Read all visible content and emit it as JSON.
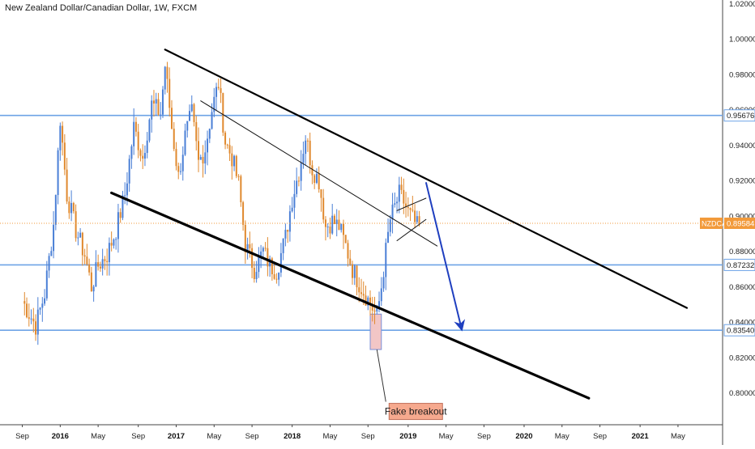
{
  "chart_data": {
    "type": "candlestick",
    "title": "New Zealand Dollar/Canadian Dollar, 1W, FXCM",
    "y_ticks": [
      "1.02000",
      "1.00000",
      "0.98000",
      "0.96000",
      "0.94000",
      "0.92000",
      "0.90000",
      "0.88000",
      "0.86000",
      "0.84000",
      "0.82000",
      "0.80000"
    ],
    "ylim": [
      0.782,
      1.022
    ],
    "x_ticks": [
      {
        "label": "Sep",
        "t": 0,
        "bold": false
      },
      {
        "label": "2016",
        "t": 17,
        "bold": true
      },
      {
        "label": "May",
        "t": 34,
        "bold": false
      },
      {
        "label": "Sep",
        "t": 52,
        "bold": false
      },
      {
        "label": "2017",
        "t": 69,
        "bold": true
      },
      {
        "label": "May",
        "t": 86,
        "bold": false
      },
      {
        "label": "Sep",
        "t": 103,
        "bold": false
      },
      {
        "label": "2018",
        "t": 121,
        "bold": true
      },
      {
        "label": "May",
        "t": 138,
        "bold": false
      },
      {
        "label": "Sep",
        "t": 155,
        "bold": false
      },
      {
        "label": "2019",
        "t": 173,
        "bold": true
      },
      {
        "label": "May",
        "t": 190,
        "bold": false
      },
      {
        "label": "Sep",
        "t": 207,
        "bold": false
      },
      {
        "label": "2020",
        "t": 225,
        "bold": true
      },
      {
        "label": "May",
        "t": 242,
        "bold": false
      },
      {
        "label": "Sep",
        "t": 259,
        "bold": false
      },
      {
        "label": "2021",
        "t": 277,
        "bold": true
      },
      {
        "label": "May",
        "t": 294,
        "bold": false
      }
    ],
    "xlim": [
      -10,
      314
    ],
    "anchors": [
      [
        0,
        0.852
      ],
      [
        6,
        0.838
      ],
      [
        10,
        0.856
      ],
      [
        14,
        0.895
      ],
      [
        17,
        0.955
      ],
      [
        20,
        0.912
      ],
      [
        24,
        0.892
      ],
      [
        28,
        0.878
      ],
      [
        31,
        0.86
      ],
      [
        34,
        0.872
      ],
      [
        38,
        0.878
      ],
      [
        42,
        0.892
      ],
      [
        46,
        0.912
      ],
      [
        50,
        0.95
      ],
      [
        54,
        0.933
      ],
      [
        58,
        0.963
      ],
      [
        62,
        0.958
      ],
      [
        64,
        0.985
      ],
      [
        67,
        0.95
      ],
      [
        70,
        0.922
      ],
      [
        73,
        0.945
      ],
      [
        76,
        0.958
      ],
      [
        79,
        0.93
      ],
      [
        82,
        0.938
      ],
      [
        85,
        0.96
      ],
      [
        88,
        0.975
      ],
      [
        91,
        0.942
      ],
      [
        94,
        0.933
      ],
      [
        97,
        0.918
      ],
      [
        100,
        0.884
      ],
      [
        104,
        0.87
      ],
      [
        108,
        0.88
      ],
      [
        111,
        0.872
      ],
      [
        114,
        0.869
      ],
      [
        118,
        0.888
      ],
      [
        121,
        0.91
      ],
      [
        124,
        0.925
      ],
      [
        127,
        0.945
      ],
      [
        130,
        0.927
      ],
      [
        133,
        0.92
      ],
      [
        136,
        0.894
      ],
      [
        139,
        0.897
      ],
      [
        142,
        0.894
      ],
      [
        145,
        0.883
      ],
      [
        148,
        0.87
      ],
      [
        151,
        0.862
      ],
      [
        154,
        0.855
      ],
      [
        157,
        0.848
      ],
      [
        159,
        0.843
      ],
      [
        161,
        0.86
      ],
      [
        163,
        0.88
      ],
      [
        165,
        0.898
      ],
      [
        167,
        0.905
      ],
      [
        169,
        0.912
      ],
      [
        171,
        0.908
      ],
      [
        173,
        0.902
      ],
      [
        175,
        0.898
      ],
      [
        177,
        0.894
      ],
      [
        178,
        0.896
      ]
    ],
    "trend_lines": [
      {
        "name": "upper-channel",
        "from": [
          64,
          0.994
        ],
        "to": [
          298,
          0.848
        ],
        "color": "#000000",
        "width": 2.2
      },
      {
        "name": "lower-channel",
        "from": [
          40,
          0.913
        ],
        "to": [
          254,
          0.797
        ],
        "color": "#000000",
        "width": 3.2
      },
      {
        "name": "inner-trendline",
        "from": [
          80,
          0.965
        ],
        "to": [
          186,
          0.883
        ],
        "color": "#111111",
        "width": 1
      },
      {
        "name": "triangle-upper",
        "from": [
          168,
          0.903
        ],
        "to": [
          181,
          0.91
        ],
        "color": "#111111",
        "width": 1
      },
      {
        "name": "triangle-lower",
        "from": [
          168,
          0.886
        ],
        "to": [
          181,
          0.898
        ],
        "color": "#111111",
        "width": 1
      }
    ],
    "arrow": {
      "from": [
        181,
        0.919
      ],
      "to": [
        197,
        0.836
      ],
      "color": "#1f3fbf"
    },
    "horizontal_levels": [
      {
        "value": 0.95676,
        "label": "0.95676"
      },
      {
        "value": 0.87232,
        "label": "0.87232"
      },
      {
        "value": 0.8354,
        "label": "0.83540"
      }
    ],
    "current_price": {
      "symbol": "NZDCAD",
      "value": 0.89584,
      "label": "0.89584",
      "color": "#f29a3a"
    },
    "highlight_box": {
      "t0": 156,
      "t1": 161,
      "y0": 0.8445,
      "y1": 0.8245
    },
    "annotation": {
      "text": "Fake breakout",
      "from": [
        159,
        0.8245
      ],
      "to": [
        163,
        0.795
      ]
    },
    "colors": {
      "up": "#4a7fd6",
      "down": "#e0892e",
      "level": "#6ea3e6",
      "box_fill": "#f2c6c6",
      "box_stroke": "#7a8fd8",
      "tag_fill": "#f6a98e",
      "tag_text": "#1a1a1a"
    }
  }
}
